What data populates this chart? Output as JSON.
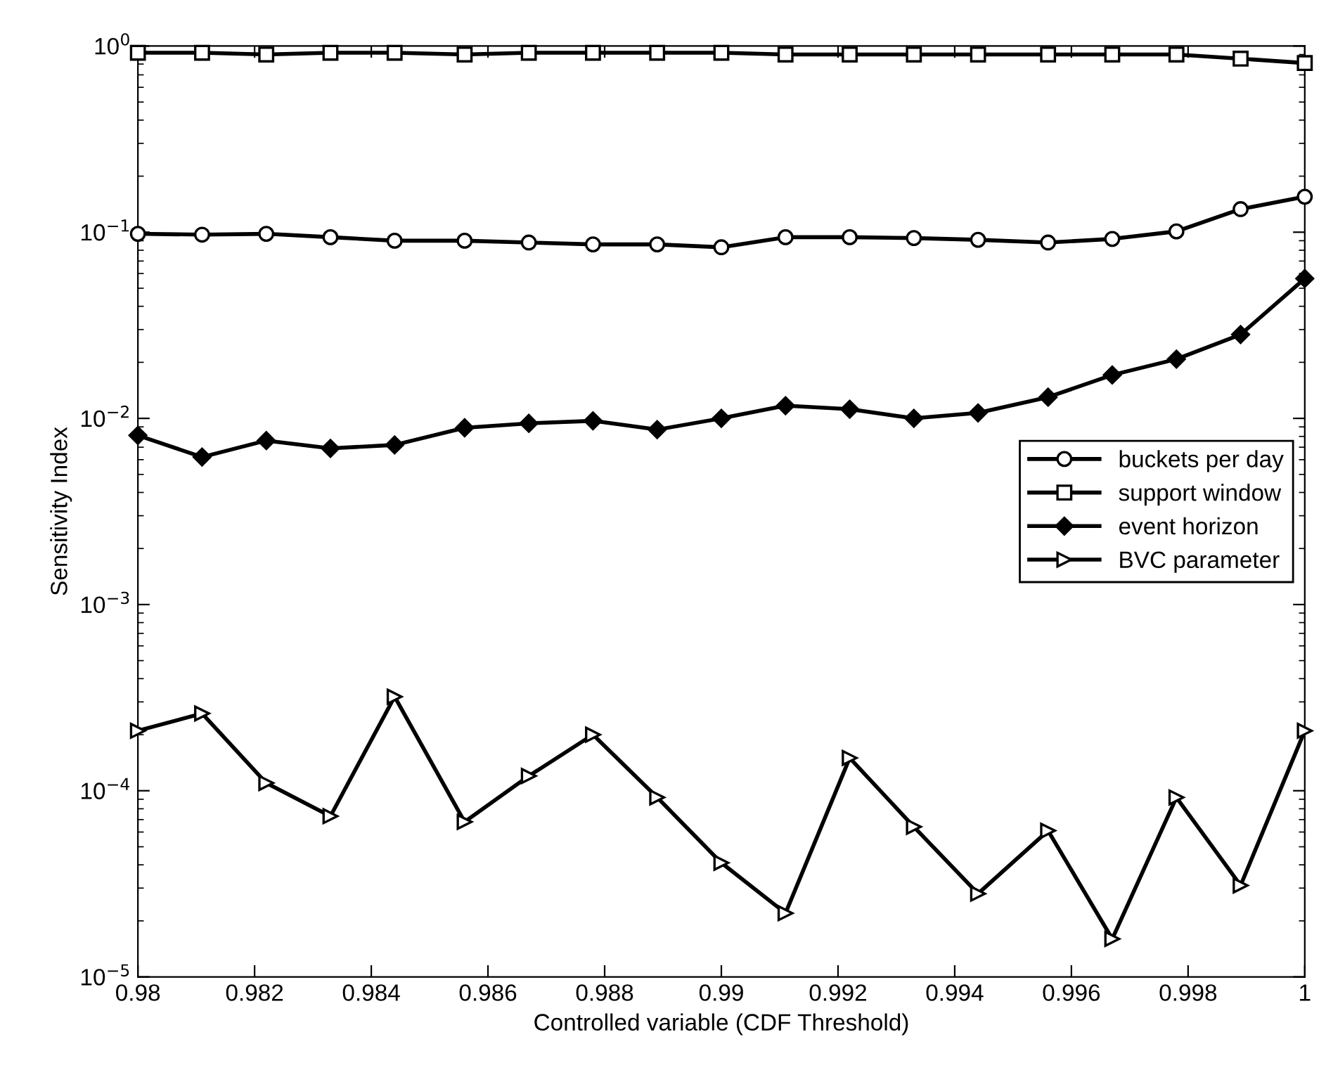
{
  "chart_data": {
    "type": "line",
    "xlabel": "Controlled variable (CDF Threshold)",
    "ylabel": "Sensitivity Index",
    "x": [
      0.98,
      0.9811,
      0.9822,
      0.9833,
      0.9844,
      0.9856,
      0.9867,
      0.9878,
      0.9889,
      0.99,
      0.9911,
      0.9922,
      0.9933,
      0.9944,
      0.9956,
      0.9967,
      0.9978,
      0.9989,
      1
    ],
    "series": [
      {
        "name": "buckets per day",
        "color": "#000000",
        "marker": "circle",
        "values": [
          0.098,
          0.097,
          0.098,
          0.094,
          0.09,
          0.09,
          0.088,
          0.086,
          0.086,
          0.083,
          0.094,
          0.094,
          0.093,
          0.091,
          0.088,
          0.092,
          0.101,
          0.133,
          0.155
        ]
      },
      {
        "name": "support window",
        "color": "#000000",
        "marker": "square",
        "values": [
          0.92,
          0.92,
          0.9,
          0.92,
          0.92,
          0.9,
          0.92,
          0.92,
          0.92,
          0.92,
          0.9,
          0.9,
          0.9,
          0.9,
          0.9,
          0.9,
          0.9,
          0.855,
          0.81
        ]
      },
      {
        "name": "event horizon",
        "color": "#000000",
        "marker": "diamond",
        "values": [
          0.0081,
          0.0062,
          0.0076,
          0.0069,
          0.0072,
          0.0089,
          0.0094,
          0.0097,
          0.0087,
          0.01,
          0.0117,
          0.0112,
          0.01,
          0.0107,
          0.013,
          0.0171,
          0.0208,
          0.0282,
          0.0564
        ]
      },
      {
        "name": "BVC parameter",
        "color": "#000000",
        "marker": "triangle",
        "values": [
          0.00021,
          0.00026,
          0.00011,
          7.3e-05,
          0.00032,
          6.8e-05,
          0.00012,
          0.0002,
          9.2e-05,
          4.1e-05,
          2.2e-05,
          0.00015,
          6.4e-05,
          2.8e-05,
          6.1e-05,
          1.6e-05,
          9.2e-05,
          3.1e-05,
          0.00021
        ]
      }
    ],
    "log": "y",
    "xlim": [
      0.98,
      1
    ],
    "xticks": [
      0.98,
      0.982,
      0.984,
      0.986,
      0.988,
      0.99,
      0.992,
      0.994,
      0.996,
      0.998,
      1
    ],
    "ylim": [
      1e-05,
      1
    ],
    "yticks": [
      {
        "value": 1e-05,
        "label": "10$^{−5}$"
      },
      {
        "value": 0.0001,
        "label": "10$^{−4}$"
      },
      {
        "value": 0.001,
        "label": "10$^{−3}$"
      },
      {
        "value": 0.01,
        "label": "10$^{−2}$"
      },
      {
        "value": 0.1,
        "label": "10$^{−1}$"
      },
      {
        "value": 1,
        "label": "10$^{0}$"
      }
    ],
    "grid": false,
    "legend": "center right",
    "line_style": "solid"
  }
}
